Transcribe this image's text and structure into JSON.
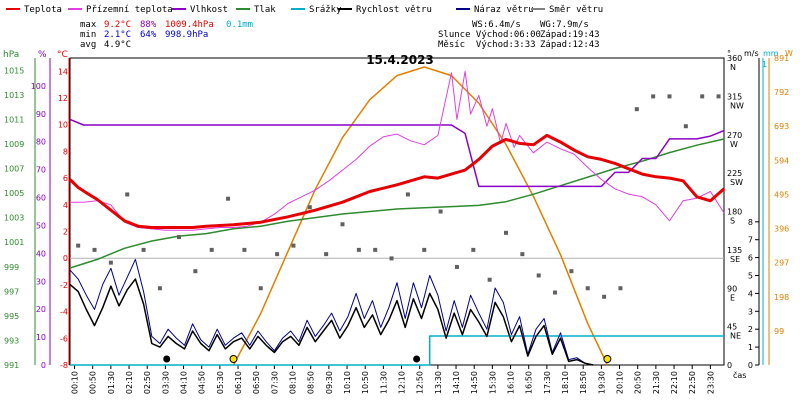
{
  "chart_data": {
    "type": "line",
    "title": "15.4.2023",
    "legend": [
      {
        "label": "Teplota",
        "color": "#e60000"
      },
      {
        "label": "Přízemní teplota",
        "color": "#e040e0"
      },
      {
        "label": "Vlhkost",
        "color": "#8c00c8"
      },
      {
        "label": "Tlak",
        "color": "#2e8b2e"
      },
      {
        "label": "Srážky",
        "color": "#00b0c8"
      },
      {
        "label": "Rychlost větru",
        "color": "#000000"
      },
      {
        "label": "Náraz větru",
        "color": "#00008b"
      },
      {
        "label": "Směr větru",
        "color": "#808080"
      }
    ],
    "stats": {
      "rows": [
        {
          "label": "max",
          "temp": "9.2°C",
          "hum": "88%",
          "press": "1009.4hPa",
          "rain": "0.1mm"
        },
        {
          "label": "min",
          "temp": "2.1°C",
          "hum": "64%",
          "press": "998.9hPa",
          "rain": ""
        },
        {
          "label": "avg",
          "temp": "4.9°C",
          "hum": "",
          "press": "",
          "rain": ""
        }
      ],
      "wind": "WS:6.4m/s",
      "gust": "WG:7.9m/s",
      "sun": "Slunce Východ:06:00",
      "sunset": "Západ:19:43",
      "moon": "Měsíc  Východ:3:33",
      "moonset": "Západ:12:43"
    },
    "axes": {
      "left_units": [
        "hPa",
        "%",
        "°C"
      ],
      "right_units": [
        "°",
        "m/s",
        "mm",
        "W"
      ],
      "xlabel": "čas",
      "hpa_ticks": [
        "1015",
        "1013",
        "1011",
        "1009",
        "1007",
        "1005",
        "1003",
        "1001",
        "999",
        "997",
        "995",
        "993",
        "991"
      ],
      "pct_ticks": [
        "100",
        "90",
        "80",
        "70",
        "60",
        "50",
        "40",
        "30",
        "20",
        "10",
        "0"
      ],
      "temp_ticks": [
        "14",
        "12",
        "10",
        "8",
        "6",
        "4",
        "2",
        "0",
        "-2",
        "-4",
        "-6",
        "-8"
      ],
      "dir_ticks": [
        "360",
        "315",
        "270",
        "225",
        "180",
        "135",
        "90",
        "45",
        "0"
      ],
      "dir_letters": [
        "N",
        "NW",
        "W",
        "SW",
        "S",
        "SE",
        "E",
        "NE"
      ],
      "ms_ticks": [
        "8",
        "7",
        "6",
        "5",
        "4",
        "3",
        "2",
        "1",
        "0"
      ],
      "mm_ticks": [
        "1"
      ],
      "w_ticks": [
        "891",
        "792",
        "693",
        "594",
        "495",
        "396",
        "297",
        "198",
        "99"
      ],
      "x_ticks": [
        "00:10",
        "00:50",
        "01:30",
        "02:10",
        "02:50",
        "03:30",
        "04:10",
        "04:50",
        "05:30",
        "06:10",
        "06:50",
        "07:30",
        "08:10",
        "08:50",
        "09:30",
        "10:10",
        "10:50",
        "11:30",
        "12:10",
        "12:50",
        "13:30",
        "14:10",
        "14:50",
        "15:30",
        "16:10",
        "16:50",
        "17:30",
        "18:10",
        "18:50",
        "19:30",
        "20:10",
        "20:50",
        "21:30",
        "22:10",
        "22:50",
        "23:30"
      ]
    },
    "xlim": [
      0,
      24
    ],
    "temp_range": [
      -8,
      15
    ],
    "press_range": [
      991,
      1016
    ],
    "hum_range": [
      0,
      110
    ],
    "dir_range": [
      0,
      360
    ],
    "ms_range": [
      0,
      8
    ],
    "solar_range": [
      0,
      891
    ],
    "series": [
      {
        "name": "Teplota",
        "color": "#e60000",
        "x": [
          0,
          0.3,
          0.6,
          1,
          1.5,
          2,
          2.5,
          3,
          3.5,
          4,
          4.5,
          5,
          6,
          7,
          8,
          9,
          10,
          11,
          12,
          13,
          13.5,
          14,
          14.5,
          15,
          15.5,
          16,
          16.5,
          17,
          17.5,
          18,
          18.5,
          19,
          19.5,
          20,
          20.5,
          21,
          21.5,
          22,
          22.5,
          23,
          23.5,
          24
        ],
        "y": [
          5.9,
          5.3,
          4.9,
          4.4,
          3.6,
          2.8,
          2.4,
          2.3,
          2.3,
          2.3,
          2.3,
          2.4,
          2.5,
          2.7,
          3.1,
          3.6,
          4.2,
          5,
          5.5,
          6.1,
          6,
          6.3,
          6.6,
          7.4,
          8.4,
          8.9,
          8.6,
          8.5,
          9.2,
          8.7,
          8.1,
          7.6,
          7.4,
          7.1,
          6.7,
          6.3,
          6.1,
          6,
          5.8,
          4.6,
          4.3,
          5.2
        ]
      },
      {
        "name": "Přízemní teplota",
        "color": "#e040e0",
        "x": [
          0,
          0.5,
          1,
          1.5,
          2,
          2.5,
          3,
          3.5,
          4,
          4.5,
          5,
          5.5,
          6,
          6.5,
          7,
          7.5,
          8,
          8.5,
          9,
          9.5,
          10,
          10.5,
          11,
          11.5,
          12,
          12.5,
          13,
          13.5,
          14,
          14.2,
          14.5,
          14.7,
          15,
          15.3,
          15.5,
          15.8,
          16,
          16.3,
          16.5,
          17,
          17.5,
          18,
          18.5,
          19,
          19.5,
          20,
          20.5,
          21,
          21.5,
          22,
          22.5,
          23,
          23.5,
          24
        ],
        "y": [
          4.2,
          4.2,
          4.3,
          4.0,
          2.7,
          2.3,
          2.2,
          2.1,
          2.1,
          2.1,
          2.2,
          2.3,
          2.3,
          2.4,
          2.7,
          3.3,
          4.1,
          4.6,
          5.1,
          5.8,
          6.6,
          7.4,
          8.4,
          9.1,
          9.3,
          8.8,
          8.5,
          9.2,
          13.9,
          10.4,
          14.0,
          10.8,
          12.2,
          9.9,
          11.2,
          8.6,
          10.1,
          8.3,
          9.2,
          7.9,
          8.7,
          8.2,
          7.8,
          6.8,
          5.9,
          5.2,
          4.8,
          4.6,
          4.0,
          2.8,
          4.3,
          4.5,
          5.0,
          3.4
        ]
      },
      {
        "name": "Vlhkost",
        "color": "#8c00c8",
        "x": [
          0,
          0.5,
          1,
          2,
          3,
          4,
          5,
          6,
          7,
          8,
          9,
          10,
          11,
          12,
          13,
          14,
          14.5,
          15,
          15.5,
          16,
          16.5,
          17,
          17.5,
          18,
          18.5,
          19,
          19.5,
          20,
          20.5,
          21,
          21.5,
          22,
          22.5,
          23,
          23.5,
          24
        ],
        "y": [
          88,
          86,
          86,
          86,
          86,
          86,
          86,
          86,
          86,
          86,
          86,
          86,
          86,
          86,
          86,
          86,
          83,
          64,
          64,
          64,
          64,
          64,
          64,
          64,
          64,
          64,
          64,
          69,
          69,
          74,
          74,
          81,
          81,
          81,
          82,
          84
        ]
      },
      {
        "name": "Tlak",
        "color": "#2e8b2e",
        "x": [
          0,
          1,
          2,
          3,
          4,
          5,
          6,
          7,
          8,
          9,
          10,
          11,
          12,
          13,
          14,
          15,
          16,
          17,
          18,
          19,
          20,
          21,
          22,
          23,
          24
        ],
        "y": [
          998.9,
          999.6,
          1000.5,
          1001.1,
          1001.5,
          1001.7,
          1002.1,
          1002.3,
          1002.7,
          1003.0,
          1003.3,
          1003.5,
          1003.7,
          1003.8,
          1003.9,
          1004.0,
          1004.3,
          1004.9,
          1005.6,
          1006.3,
          1007.0,
          1007.6,
          1008.3,
          1008.9,
          1009.4
        ]
      },
      {
        "name": "Rychlost větru",
        "color": "#000000",
        "x": [
          0,
          0.3,
          0.6,
          0.9,
          1.2,
          1.5,
          1.8,
          2.1,
          2.4,
          2.7,
          3,
          3.3,
          3.6,
          3.9,
          4.2,
          4.5,
          4.8,
          5.1,
          5.4,
          5.7,
          6,
          6.3,
          6.6,
          6.9,
          7.2,
          7.5,
          7.8,
          8.1,
          8.4,
          8.7,
          9,
          9.3,
          9.6,
          9.9,
          10.2,
          10.5,
          10.8,
          11.1,
          11.4,
          11.7,
          12,
          12.3,
          12.6,
          12.9,
          13.2,
          13.5,
          13.8,
          14.1,
          14.4,
          14.7,
          15,
          15.3,
          15.6,
          15.9,
          16.2,
          16.5,
          16.8,
          17.1,
          17.4,
          17.7,
          18,
          18.3,
          18.6,
          18.9,
          19.2
        ],
        "y": [
          4.5,
          4.1,
          3.1,
          2.2,
          3.2,
          4.4,
          3.3,
          4.2,
          4.8,
          3.4,
          1.2,
          1.0,
          1.6,
          1.2,
          0.9,
          1.9,
          1.2,
          0.8,
          1.7,
          0.9,
          1.3,
          1.5,
          0.9,
          1.6,
          1.1,
          0.7,
          1.3,
          1.6,
          1.1,
          2.1,
          1.3,
          1.9,
          2.5,
          1.5,
          2.2,
          3.2,
          2.1,
          2.8,
          1.7,
          2.5,
          3.6,
          2.1,
          3.7,
          2.6,
          4.0,
          3.1,
          1.5,
          2.9,
          1.7,
          3.1,
          2.4,
          1.6,
          3.5,
          2.7,
          1.3,
          2.2,
          0.5,
          1.6,
          2.2,
          0.6,
          1.5,
          0.2,
          0.3,
          0.1,
          0
        ]
      },
      {
        "name": "Náraz větru",
        "color": "#00008b",
        "x": [
          0,
          0.3,
          0.6,
          0.9,
          1.2,
          1.5,
          1.8,
          2.1,
          2.4,
          2.7,
          3,
          3.3,
          3.6,
          3.9,
          4.2,
          4.5,
          4.8,
          5.1,
          5.4,
          5.7,
          6,
          6.3,
          6.6,
          6.9,
          7.2,
          7.5,
          7.8,
          8.1,
          8.4,
          8.7,
          9,
          9.3,
          9.6,
          9.9,
          10.2,
          10.5,
          10.8,
          11.1,
          11.4,
          11.7,
          12,
          12.3,
          12.6,
          12.9,
          13.2,
          13.5,
          13.8,
          14.1,
          14.4,
          14.7,
          15,
          15.3,
          15.6,
          15.9,
          16.2,
          16.5,
          16.8,
          17.1,
          17.4,
          17.7,
          18,
          18.3,
          18.6,
          18.9,
          19.2
        ],
        "y": [
          5.3,
          4.8,
          3.9,
          3.1,
          4.5,
          5.4,
          3.9,
          4.9,
          5.9,
          4.1,
          1.6,
          1.2,
          2.0,
          1.5,
          1.1,
          2.3,
          1.4,
          1.0,
          2.0,
          1.1,
          1.5,
          1.8,
          1.1,
          1.9,
          1.3,
          0.8,
          1.5,
          1.9,
          1.3,
          2.5,
          1.6,
          2.2,
          2.9,
          1.9,
          2.7,
          4.0,
          2.6,
          3.6,
          2.1,
          3.2,
          4.6,
          2.6,
          4.6,
          3.2,
          5.0,
          3.9,
          1.9,
          3.6,
          2.1,
          3.9,
          2.9,
          2.0,
          4.3,
          3.5,
          1.7,
          2.7,
          0.6,
          2.0,
          2.6,
          0.7,
          1.8,
          0.3,
          0.4,
          0.1,
          0
        ]
      },
      {
        "name": "Srážky",
        "color": "#00b0c8",
        "x": [
          0,
          13.2,
          13.2,
          24
        ],
        "y": [
          0,
          0,
          0.1,
          0.1
        ]
      },
      {
        "name": "Sluneční záření",
        "color": "#e08000",
        "x": [
          6.0,
          7,
          8,
          9,
          10,
          11,
          12,
          13,
          14,
          15,
          16,
          17,
          18,
          19,
          19.72
        ],
        "y": [
          0,
          150,
          330,
          510,
          660,
          770,
          840,
          865,
          840,
          760,
          640,
          490,
          320,
          120,
          0
        ]
      },
      {
        "name": "Směr větru",
        "color": "#606060",
        "x": [
          0.3,
          0.9,
          1.5,
          2.1,
          2.7,
          3.3,
          4.0,
          4.6,
          5.2,
          5.8,
          6.4,
          7.0,
          7.6,
          8.2,
          8.8,
          9.4,
          10.0,
          10.6,
          11.2,
          11.8,
          12.4,
          13.0,
          13.6,
          14.2,
          14.8,
          15.4,
          16.0,
          16.6,
          17.2,
          17.8,
          18.4,
          19.0,
          19.6,
          20.2,
          20.8,
          21.4,
          22.0,
          22.6,
          23.2,
          23.8
        ],
        "y": [
          140,
          135,
          120,
          200,
          135,
          90,
          150,
          110,
          135,
          195,
          135,
          90,
          130,
          140,
          185,
          130,
          165,
          135,
          135,
          125,
          200,
          135,
          180,
          115,
          135,
          100,
          155,
          130,
          105,
          85,
          110,
          90,
          80,
          90,
          300,
          315,
          315,
          280,
          315,
          315
        ]
      }
    ]
  }
}
